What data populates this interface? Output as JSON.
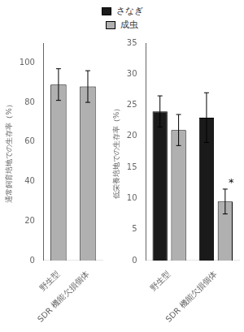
{
  "chart_data": [
    {
      "type": "bar",
      "categories": [
        "野生型",
        "SDR 機能欠損個体"
      ],
      "values": [
        89,
        88
      ],
      "errors": [
        8,
        8
      ],
      "color": "#b0b0b0",
      "ylabel": "通常飼育培地での生存率（%）",
      "ylim": [
        0,
        110
      ],
      "yticks": [
        0,
        20,
        40,
        60,
        80,
        100
      ],
      "grid": false
    },
    {
      "type": "bar",
      "categories": [
        "野生型",
        "SDR 機能欠損個体"
      ],
      "series": [
        {
          "name": "さなぎ",
          "color": "#1a1a1a",
          "values": [
            24,
            23
          ],
          "errors": [
            2.5,
            4
          ]
        },
        {
          "name": "成虫",
          "color": "#b0b0b0",
          "values": [
            21,
            9.5
          ],
          "errors": [
            2.5,
            2
          ]
        }
      ],
      "ylabel": "低栄養培地での生存率（%）",
      "ylim": [
        0,
        35
      ],
      "yticks": [
        0,
        5,
        10,
        15,
        20,
        25,
        30,
        35
      ],
      "grid": false,
      "legend": "upper center",
      "annotations": [
        {
          "text": "*",
          "category": "SDR 機能欠損個体",
          "series": "成虫",
          "y": 12
        }
      ]
    }
  ]
}
